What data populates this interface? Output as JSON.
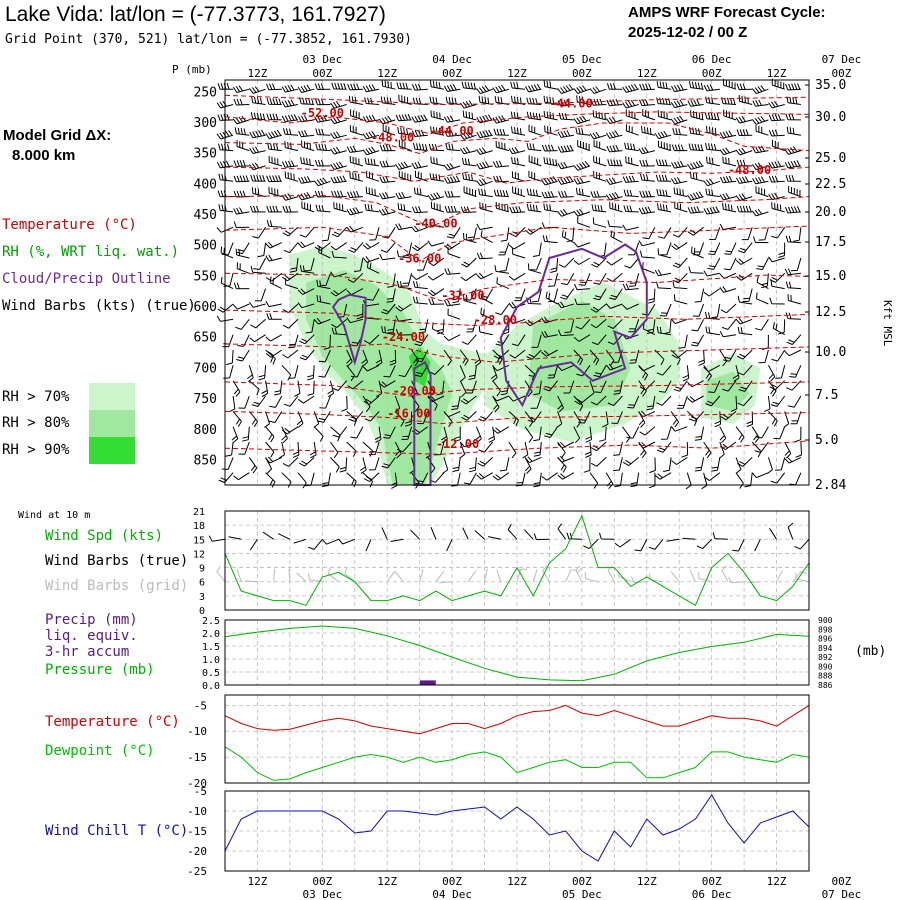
{
  "header": {
    "title": "Lake Vida:  lat/lon = (-77.3773, 161.7927)",
    "subtitle": "Grid Point (370, 521) lat/lon = (-77.3852, 161.7930)",
    "cycle_line1": "AMPS WRF Forecast Cycle:",
    "cycle_line2": "2025-12-02 / 00  Z",
    "grid_label1": "Model Grid ΔX:",
    "grid_label2": "8.000 km"
  },
  "colors": {
    "temperature": "#d00000",
    "rh": "#00a000",
    "cloud": "#6a2a9a",
    "wind": "#000000",
    "wind_grid": "#bbbbbb",
    "precip": "#5a1a8a",
    "pressure": "#00b000",
    "dewpoint": "#00c000",
    "windchill": "#1010b0",
    "rh70": "#ccf5cc",
    "rh80": "#a0e8a0",
    "rh90": "#33dd33"
  },
  "legend": {
    "temperature": "Temperature (°C)",
    "rh": "RH (%, WRT liq. wat.)",
    "cloud": "Cloud/Precip Outline",
    "wind": "Wind Barbs (kts) (true)",
    "rh70": "RH > 70%",
    "rh80": "RH > 80%",
    "rh90": "RH > 90%"
  },
  "time_axis": {
    "ticks": [
      "12Z",
      "00Z",
      "12Z",
      "00Z",
      "12Z",
      "00Z",
      "12Z",
      "00Z",
      "12Z",
      "00Z"
    ],
    "dates": [
      "03 Dec",
      "04 Dec",
      "05 Dec",
      "06 Dec",
      "07 Dec"
    ]
  },
  "panels": {
    "wind10m_label": "Wind at 10 m",
    "wind_spd": "Wind Spd (kts)",
    "wind_barbs_true": "Wind Barbs (true)",
    "wind_barbs_grid": "Wind Barbs (grid)",
    "precip1": "Precip (mm)",
    "precip2": "liq. equiv.",
    "precip3": "3-hr accum",
    "pressure": "Pressure (mb)",
    "mb_unit": "(mb)",
    "temperature": "Temperature (°C)",
    "dewpoint": "Dewpoint (°C)",
    "windchill": "Wind Chill T (°C)"
  },
  "chart_data": [
    {
      "type": "heatmap",
      "name": "cross-section",
      "x_hours": [
        0,
        108
      ],
      "yaxis_left_label": "P (mb)",
      "yaxis_right_label": "Kft MSL",
      "pressure_ticks": [
        250,
        300,
        350,
        400,
        450,
        500,
        550,
        600,
        650,
        700,
        750,
        800,
        850
      ],
      "height_ticks": [
        "35.0",
        "30.0",
        "25.0",
        "22.5",
        "20.0",
        "17.5",
        "15.0",
        "12.5",
        "10.0",
        "7.5",
        "5.0",
        "2.84"
      ],
      "temperature_labels": [
        {
          "text": "-52.00",
          "t": 18,
          "p": 290
        },
        {
          "text": "-48.00",
          "t": 31,
          "p": 330
        },
        {
          "text": "-44.00",
          "t": 42,
          "p": 320
        },
        {
          "text": "-44.00",
          "t": 64,
          "p": 275
        },
        {
          "text": "-48.00",
          "t": 97,
          "p": 383
        },
        {
          "text": "-40.00",
          "t": 39,
          "p": 470
        },
        {
          "text": "-36.00",
          "t": 36,
          "p": 527
        },
        {
          "text": "-32.00",
          "t": 44,
          "p": 588
        },
        {
          "text": "-28.00",
          "t": 50,
          "p": 628
        },
        {
          "text": "-24.00",
          "t": 33,
          "p": 655
        },
        {
          "text": "-20.00",
          "t": 35,
          "p": 743
        },
        {
          "text": "-16.00",
          "t": 34,
          "p": 780
        },
        {
          "text": "-12.00",
          "t": 43,
          "p": 830
        }
      ]
    },
    {
      "type": "line",
      "name": "wind-10m",
      "ylim": [
        0,
        21
      ],
      "yticks": [
        0,
        3,
        6,
        9,
        12,
        15,
        18,
        21
      ],
      "series": [
        {
          "name": "Wind Spd (kts)",
          "x": [
            0,
            3,
            6,
            9,
            12,
            15,
            18,
            21,
            24,
            27,
            30,
            33,
            36,
            39,
            42,
            45,
            48,
            51,
            54,
            57,
            60,
            63,
            66,
            69,
            72,
            75,
            78,
            81,
            84,
            87,
            90,
            93,
            96,
            99,
            102,
            105,
            108
          ],
          "values": [
            12,
            4,
            3,
            2,
            2,
            1,
            7,
            8,
            6,
            2,
            2,
            3,
            2,
            4,
            2,
            3,
            4,
            3,
            9,
            3,
            10,
            13,
            20,
            9,
            9,
            5,
            7,
            5,
            3,
            1,
            9,
            12,
            8,
            3,
            2,
            5,
            10
          ]
        }
      ]
    },
    {
      "type": "line",
      "name": "precip-pressure",
      "ylim_left": [
        0,
        2.5
      ],
      "yticks_left": [
        "0.0",
        "0.5",
        "1.0",
        "1.5",
        "2.0",
        "2.5"
      ],
      "ylim_right": [
        886,
        900
      ],
      "yticks_right": [
        "886",
        "888",
        "890",
        "892",
        "894",
        "896",
        "898",
        "900"
      ],
      "precip_bars": [
        {
          "x": 37.5,
          "value": 0.1
        }
      ],
      "series": [
        {
          "name": "Pressure (mb)",
          "x": [
            0,
            6,
            12,
            18,
            24,
            30,
            36,
            42,
            48,
            54,
            60,
            66,
            72,
            78,
            84,
            90,
            96,
            102,
            108
          ],
          "values": [
            896.4,
            897.4,
            898.2,
            898.7,
            898.2,
            896.6,
            894.5,
            892.0,
            889.6,
            887.7,
            887.1,
            886.9,
            888.3,
            891.2,
            893.0,
            894.3,
            895.2,
            896.9,
            896.5
          ]
        }
      ]
    },
    {
      "type": "line",
      "name": "temp-dewpoint",
      "ylim": [
        -20,
        -3
      ],
      "yticks": [
        -5,
        -10,
        -15,
        -20
      ],
      "series": [
        {
          "name": "Temperature (°C)",
          "x": [
            0,
            3,
            6,
            9,
            12,
            15,
            18,
            21,
            24,
            27,
            30,
            33,
            36,
            39,
            42,
            45,
            48,
            51,
            54,
            57,
            60,
            63,
            66,
            69,
            72,
            75,
            78,
            81,
            84,
            87,
            90,
            93,
            96,
            99,
            102,
            105,
            108
          ],
          "values": [
            -7,
            -8.5,
            -9.5,
            -9.8,
            -9.6,
            -8.8,
            -8,
            -7.5,
            -8,
            -9,
            -9.5,
            -10,
            -10.5,
            -9.5,
            -8.5,
            -8.5,
            -9.5,
            -8.5,
            -7,
            -6.2,
            -6,
            -5,
            -6.5,
            -7,
            -6,
            -7,
            -8,
            -9,
            -9,
            -8,
            -7,
            -7.5,
            -7.5,
            -8,
            -9,
            -7,
            -5
          ]
        },
        {
          "name": "Dewpoint (°C)",
          "x": [
            0,
            3,
            6,
            9,
            12,
            15,
            18,
            21,
            24,
            27,
            30,
            33,
            36,
            39,
            42,
            45,
            48,
            51,
            54,
            57,
            60,
            63,
            66,
            69,
            72,
            75,
            78,
            81,
            84,
            87,
            90,
            93,
            96,
            99,
            102,
            105,
            108
          ],
          "values": [
            -13,
            -15,
            -18,
            -19.5,
            -19.2,
            -18,
            -17,
            -16,
            -15,
            -14.5,
            -15,
            -16,
            -15,
            -16,
            -15.5,
            -14.5,
            -14,
            -15,
            -18,
            -17,
            -16,
            -15.5,
            -17,
            -17,
            -16,
            -16,
            -19,
            -19,
            -18,
            -17,
            -14,
            -14,
            -15,
            -15.5,
            -16,
            -14.5,
            -15
          ]
        }
      ]
    },
    {
      "type": "line",
      "name": "wind-chill",
      "ylim": [
        -25,
        -5
      ],
      "yticks": [
        -5,
        -10,
        -15,
        -20,
        -25
      ],
      "series": [
        {
          "name": "Wind Chill T (°C)",
          "x": [
            0,
            3,
            6,
            9,
            12,
            15,
            18,
            21,
            24,
            27,
            30,
            33,
            36,
            39,
            42,
            45,
            48,
            51,
            54,
            57,
            60,
            63,
            66,
            69,
            72,
            75,
            78,
            81,
            84,
            87,
            90,
            93,
            96,
            99,
            102,
            105,
            108
          ],
          "values": [
            -20,
            -12,
            -10,
            -10,
            -10,
            -10,
            -10,
            -12,
            -15.5,
            -15,
            -10,
            -10,
            -10.5,
            -11,
            -10,
            -9.5,
            -9,
            -12,
            -9,
            -12,
            -16,
            -15,
            -20,
            -22.5,
            -15,
            -19,
            -12,
            -16,
            -14.5,
            -12,
            -6,
            -13,
            -18,
            -13,
            -11.5,
            -10,
            -14
          ]
        }
      ]
    }
  ]
}
